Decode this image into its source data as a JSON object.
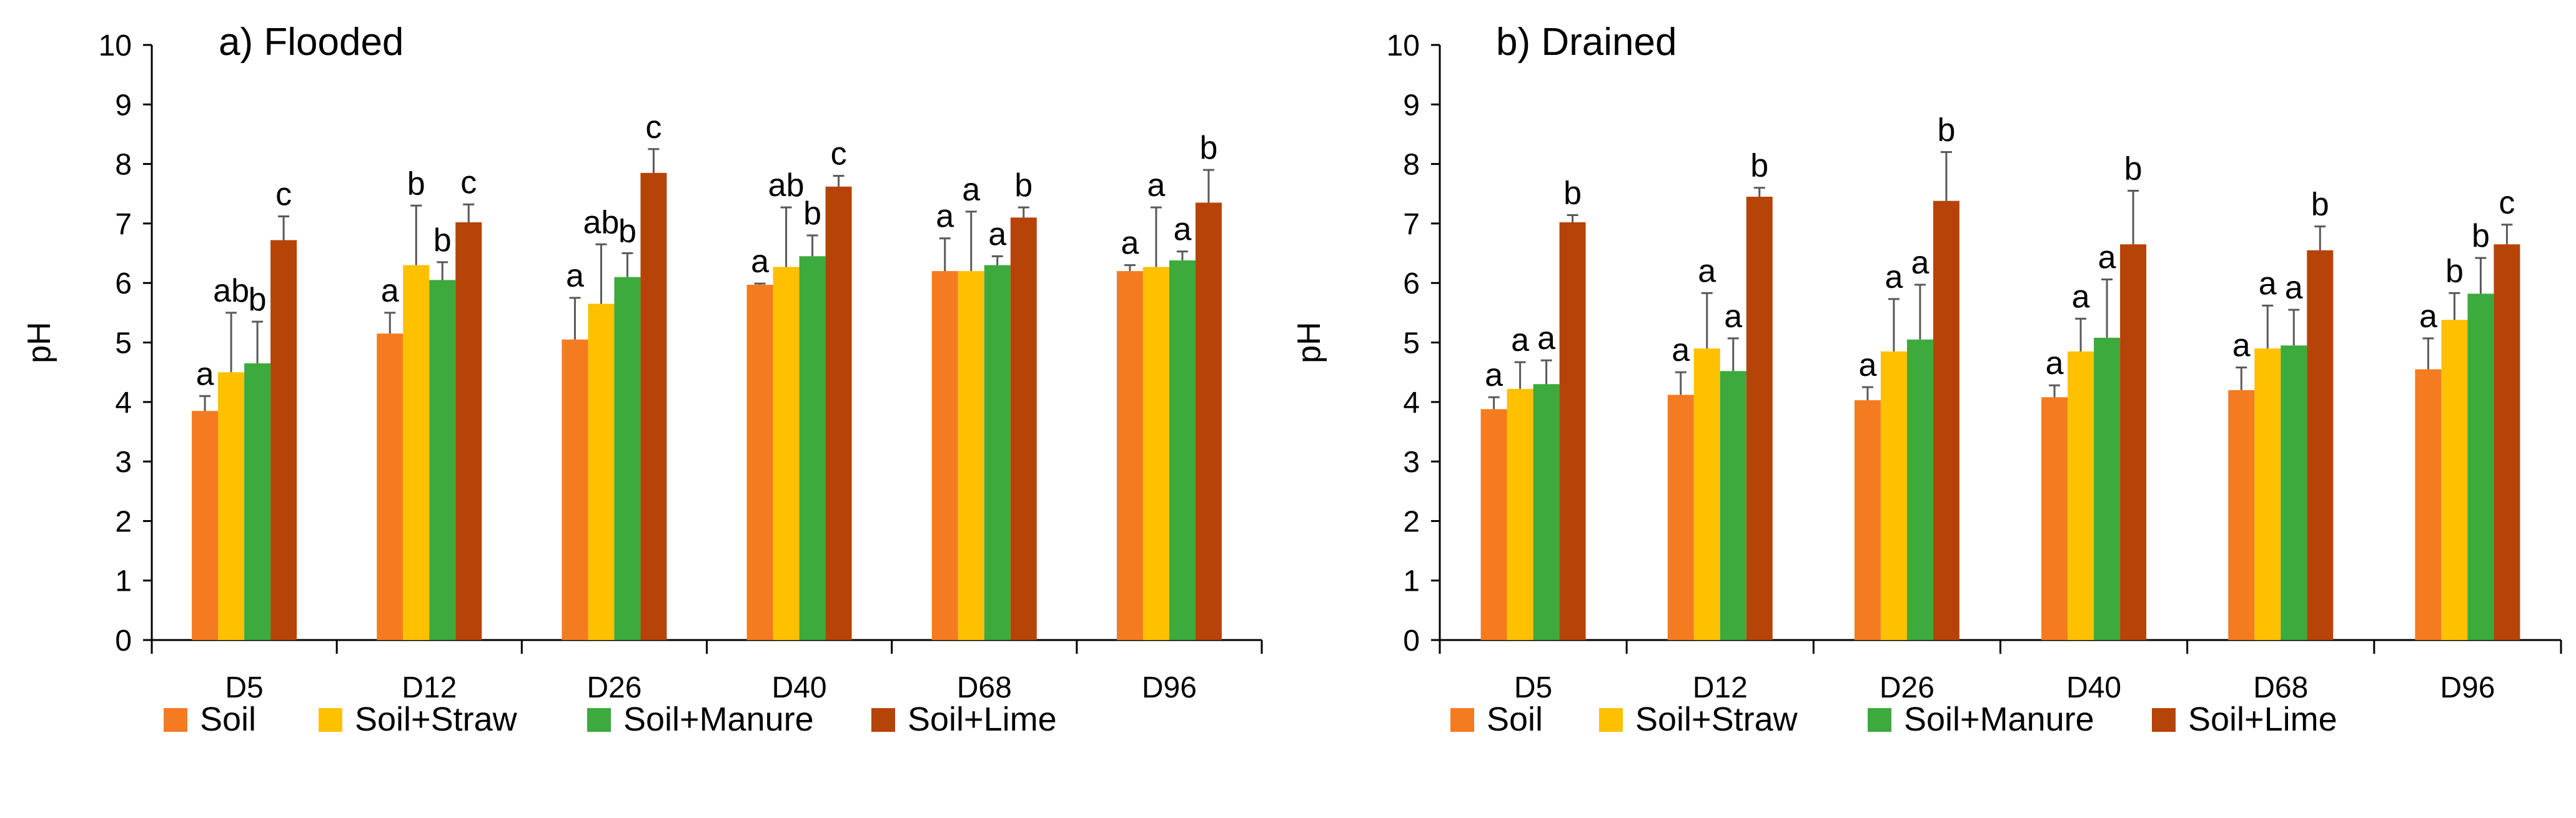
{
  "chart_data": [
    {
      "type": "bar",
      "title": "a) Flooded",
      "xlabel": "",
      "ylabel": "pH",
      "ylim": [
        0,
        10
      ],
      "yticks": [
        "0",
        "1",
        "2",
        "3",
        "4",
        "5",
        "6",
        "7",
        "8",
        "9",
        "10"
      ],
      "categories": [
        "D5",
        "D12",
        "D26",
        "D40",
        "D68",
        "D96"
      ],
      "series": [
        {
          "name": "Soil",
          "color": "#F47B20",
          "values": [
            3.85,
            5.15,
            5.05,
            5.97,
            6.2,
            6.2
          ],
          "errors": [
            0.25,
            0.35,
            0.7,
            0.02,
            0.55,
            0.1
          ],
          "letters": [
            "a",
            "a",
            "a",
            "a",
            "a",
            "a"
          ]
        },
        {
          "name": "Soil+Straw",
          "color": "#FFC000",
          "values": [
            4.5,
            6.3,
            5.65,
            6.27,
            6.2,
            6.27
          ],
          "errors": [
            1.0,
            1.0,
            1.0,
            1.0,
            1.0,
            1.0
          ],
          "letters": [
            "ab",
            "b",
            "ab",
            "ab",
            "a",
            "a"
          ]
        },
        {
          "name": "Soil+Manure",
          "color": "#3CAA3C",
          "values": [
            4.65,
            6.05,
            6.1,
            6.45,
            6.3,
            6.38
          ],
          "errors": [
            0.7,
            0.3,
            0.4,
            0.35,
            0.15,
            0.15
          ],
          "letters": [
            "b",
            "b",
            "b",
            "b",
            "a",
            "a"
          ]
        },
        {
          "name": "Soil+Lime",
          "color": "#B64408",
          "values": [
            6.72,
            7.02,
            7.85,
            7.62,
            7.1,
            7.35
          ],
          "errors": [
            0.4,
            0.3,
            0.4,
            0.18,
            0.17,
            0.55
          ],
          "letters": [
            "c",
            "c",
            "c",
            "c",
            "b",
            "b"
          ]
        }
      ]
    },
    {
      "type": "bar",
      "title": "b) Drained",
      "xlabel": "",
      "ylabel": "pH",
      "ylim": [
        0,
        10
      ],
      "yticks": [
        "0",
        "1",
        "2",
        "3",
        "4",
        "5",
        "6",
        "7",
        "8",
        "9",
        "10"
      ],
      "categories": [
        "D5",
        "D12",
        "D26",
        "D40",
        "D68",
        "D96"
      ],
      "series": [
        {
          "name": "Soil",
          "color": "#F47B20",
          "values": [
            3.88,
            4.12,
            4.03,
            4.08,
            4.2,
            4.55
          ],
          "errors": [
            0.2,
            0.38,
            0.22,
            0.2,
            0.38,
            0.52
          ],
          "letters": [
            "a",
            "a",
            "a",
            "a",
            "a",
            "a"
          ]
        },
        {
          "name": "Soil+Straw",
          "color": "#FFC000",
          "values": [
            4.22,
            4.9,
            4.85,
            4.85,
            4.9,
            5.38
          ],
          "errors": [
            0.45,
            0.93,
            0.88,
            0.55,
            0.72,
            0.45
          ],
          "letters": [
            "a",
            "a",
            "a",
            "a",
            "a",
            "b"
          ]
        },
        {
          "name": "Soil+Manure",
          "color": "#3CAA3C",
          "values": [
            4.3,
            4.52,
            5.05,
            5.08,
            4.95,
            5.82
          ],
          "errors": [
            0.4,
            0.55,
            0.92,
            0.98,
            0.6,
            0.6
          ],
          "letters": [
            "a",
            "a",
            "a",
            "a",
            "a",
            "b"
          ]
        },
        {
          "name": "Soil+Lime",
          "color": "#B64408",
          "values": [
            7.02,
            7.45,
            7.38,
            6.65,
            6.55,
            6.65
          ],
          "errors": [
            0.12,
            0.15,
            0.82,
            0.9,
            0.4,
            0.33
          ],
          "letters": [
            "b",
            "b",
            "b",
            "b",
            "b",
            "c"
          ]
        }
      ]
    }
  ]
}
